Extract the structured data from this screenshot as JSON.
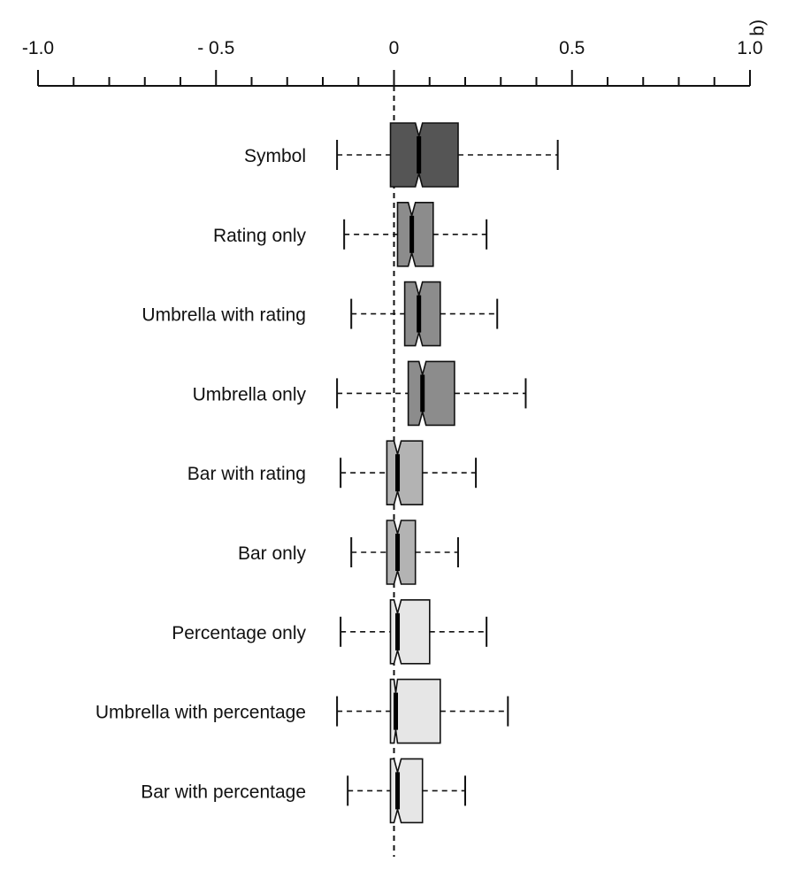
{
  "chart_data": {
    "type": "boxplot",
    "orientation": "horizontal",
    "notched": true,
    "xlim": [
      -1.0,
      1.0
    ],
    "x_ticks": [
      {
        "value": -1.0,
        "label": "-1.0"
      },
      {
        "value": -0.5,
        "label": "- 0.5"
      },
      {
        "value": 0.0,
        "label": "0"
      },
      {
        "value": 0.5,
        "label": "0.5"
      },
      {
        "value": 1.0,
        "label": "1.0"
      }
    ],
    "minor_tick_step": 0.1,
    "axis_position": "top",
    "axis_label_fragment": "(q",
    "reference_line": {
      "value": 0.0,
      "style": "dashed"
    },
    "categories": [
      "Symbol",
      "Rating only",
      "Umbrella with rating",
      "Umbrella only",
      "Bar with rating",
      "Bar only",
      "Percentage only",
      "Umbrella with percentage",
      "Bar with percentage"
    ],
    "boxes": [
      {
        "category": "Symbol",
        "whisker_low": -0.16,
        "q1": -0.01,
        "notch_low": 0.06,
        "median": 0.07,
        "notch_high": 0.08,
        "q3": 0.18,
        "whisker_high": 0.46,
        "fill": "#555555"
      },
      {
        "category": "Rating only",
        "whisker_low": -0.14,
        "q1": 0.01,
        "notch_low": 0.04,
        "median": 0.05,
        "notch_high": 0.06,
        "q3": 0.11,
        "whisker_high": 0.26,
        "fill": "#8c8c8c"
      },
      {
        "category": "Umbrella with rating",
        "whisker_low": -0.12,
        "q1": 0.03,
        "notch_low": 0.06,
        "median": 0.07,
        "notch_high": 0.08,
        "q3": 0.13,
        "whisker_high": 0.29,
        "fill": "#8c8c8c"
      },
      {
        "category": "Umbrella only",
        "whisker_low": -0.16,
        "q1": 0.04,
        "notch_low": 0.07,
        "median": 0.08,
        "notch_high": 0.09,
        "q3": 0.17,
        "whisker_high": 0.37,
        "fill": "#8c8c8c"
      },
      {
        "category": "Bar with rating",
        "whisker_low": -0.15,
        "q1": -0.02,
        "notch_low": 0.0,
        "median": 0.01,
        "notch_high": 0.02,
        "q3": 0.08,
        "whisker_high": 0.23,
        "fill": "#b3b3b3"
      },
      {
        "category": "Bar only",
        "whisker_low": -0.12,
        "q1": -0.02,
        "notch_low": 0.0,
        "median": 0.01,
        "notch_high": 0.02,
        "q3": 0.06,
        "whisker_high": 0.18,
        "fill": "#b3b3b3"
      },
      {
        "category": "Percentage only",
        "whisker_low": -0.15,
        "q1": -0.01,
        "notch_low": 0.0,
        "median": 0.01,
        "notch_high": 0.02,
        "q3": 0.1,
        "whisker_high": 0.26,
        "fill": "#e6e6e6"
      },
      {
        "category": "Umbrella with percentage",
        "whisker_low": -0.16,
        "q1": -0.01,
        "notch_low": 0.0,
        "median": 0.005,
        "notch_high": 0.01,
        "q3": 0.13,
        "whisker_high": 0.32,
        "fill": "#e6e6e6"
      },
      {
        "category": "Bar with percentage",
        "whisker_low": -0.13,
        "q1": -0.01,
        "notch_low": 0.0,
        "median": 0.01,
        "notch_high": 0.02,
        "q3": 0.08,
        "whisker_high": 0.2,
        "fill": "#e6e6e6"
      }
    ]
  }
}
